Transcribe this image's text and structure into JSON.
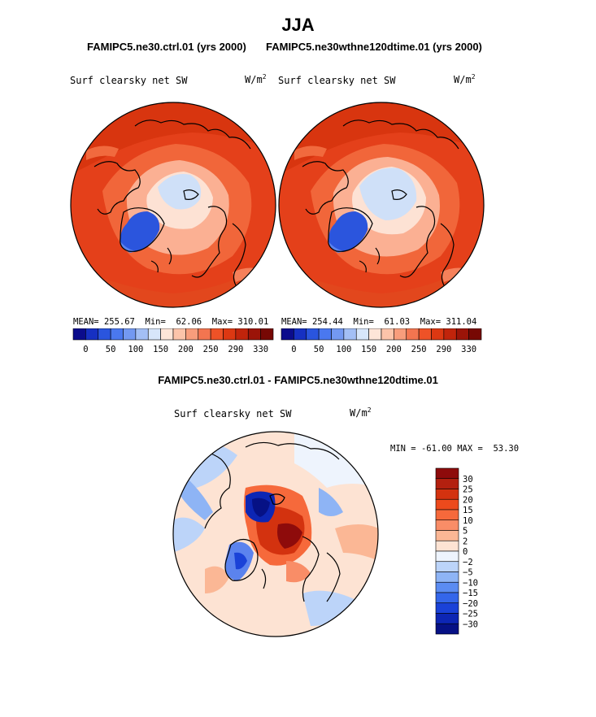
{
  "season": "JJA",
  "panels": [
    {
      "case_label": "FAMIPC5.ne30.ctrl.01 (yrs 2000)",
      "field_name": "Surf clearsky net SW",
      "units": "W/m",
      "units_exp": "2",
      "mean_label": "MEAN=",
      "mean_value": "255.67",
      "min_label": "Min=",
      "min_value": "62.06",
      "max_label": "Max=",
      "max_value": "310.01"
    },
    {
      "case_label": "FAMIPC5.ne30wthne120dtime.01 (yrs 2000)",
      "field_name": "Surf clearsky net SW",
      "units": "W/m",
      "units_exp": "2",
      "mean_label": "MEAN=",
      "mean_value": "254.44",
      "min_label": "Min=",
      "min_value": "61.03",
      "max_label": "Max=",
      "max_value": "311.04"
    }
  ],
  "abs_colorbar": {
    "colors": [
      "#0b0c8c",
      "#1630c2",
      "#2a55de",
      "#4a78ef",
      "#7399f2",
      "#a3bff5",
      "#d7e6fa",
      "#fde5d8",
      "#fcc4aa",
      "#f89d7c",
      "#f37550",
      "#ee5227",
      "#dd3812",
      "#c1240b",
      "#9b1408",
      "#770804"
    ],
    "tick_labels": [
      "0",
      "50",
      "100",
      "150",
      "200",
      "250",
      "290",
      "330"
    ]
  },
  "difference": {
    "title": "FAMIPC5.ne30.ctrl.01 - FAMIPC5.ne30wthne120dtime.01",
    "field_name": "Surf clearsky net SW",
    "units": "W/m",
    "units_exp": "2",
    "min_label": "MIN =",
    "min_value": "-61.00",
    "max_label": "MAX =",
    "max_value": "53.30",
    "colorbar_colors": [
      "#8e0b0b",
      "#b3200f",
      "#d3320f",
      "#ed4a1c",
      "#f6693b",
      "#f98d67",
      "#fbb795",
      "#fde3d3",
      "#eef4fd",
      "#bcd4f9",
      "#8eb4f5",
      "#5b8cf2",
      "#3466ea",
      "#1a42d8",
      "#0d26b4",
      "#061185"
    ],
    "colorbar_labels": [
      "30",
      "25",
      "20",
      "15",
      "10",
      "5",
      "2",
      "0",
      "−2",
      "−5",
      "−10",
      "−15",
      "−20",
      "−25",
      "−30"
    ]
  }
}
